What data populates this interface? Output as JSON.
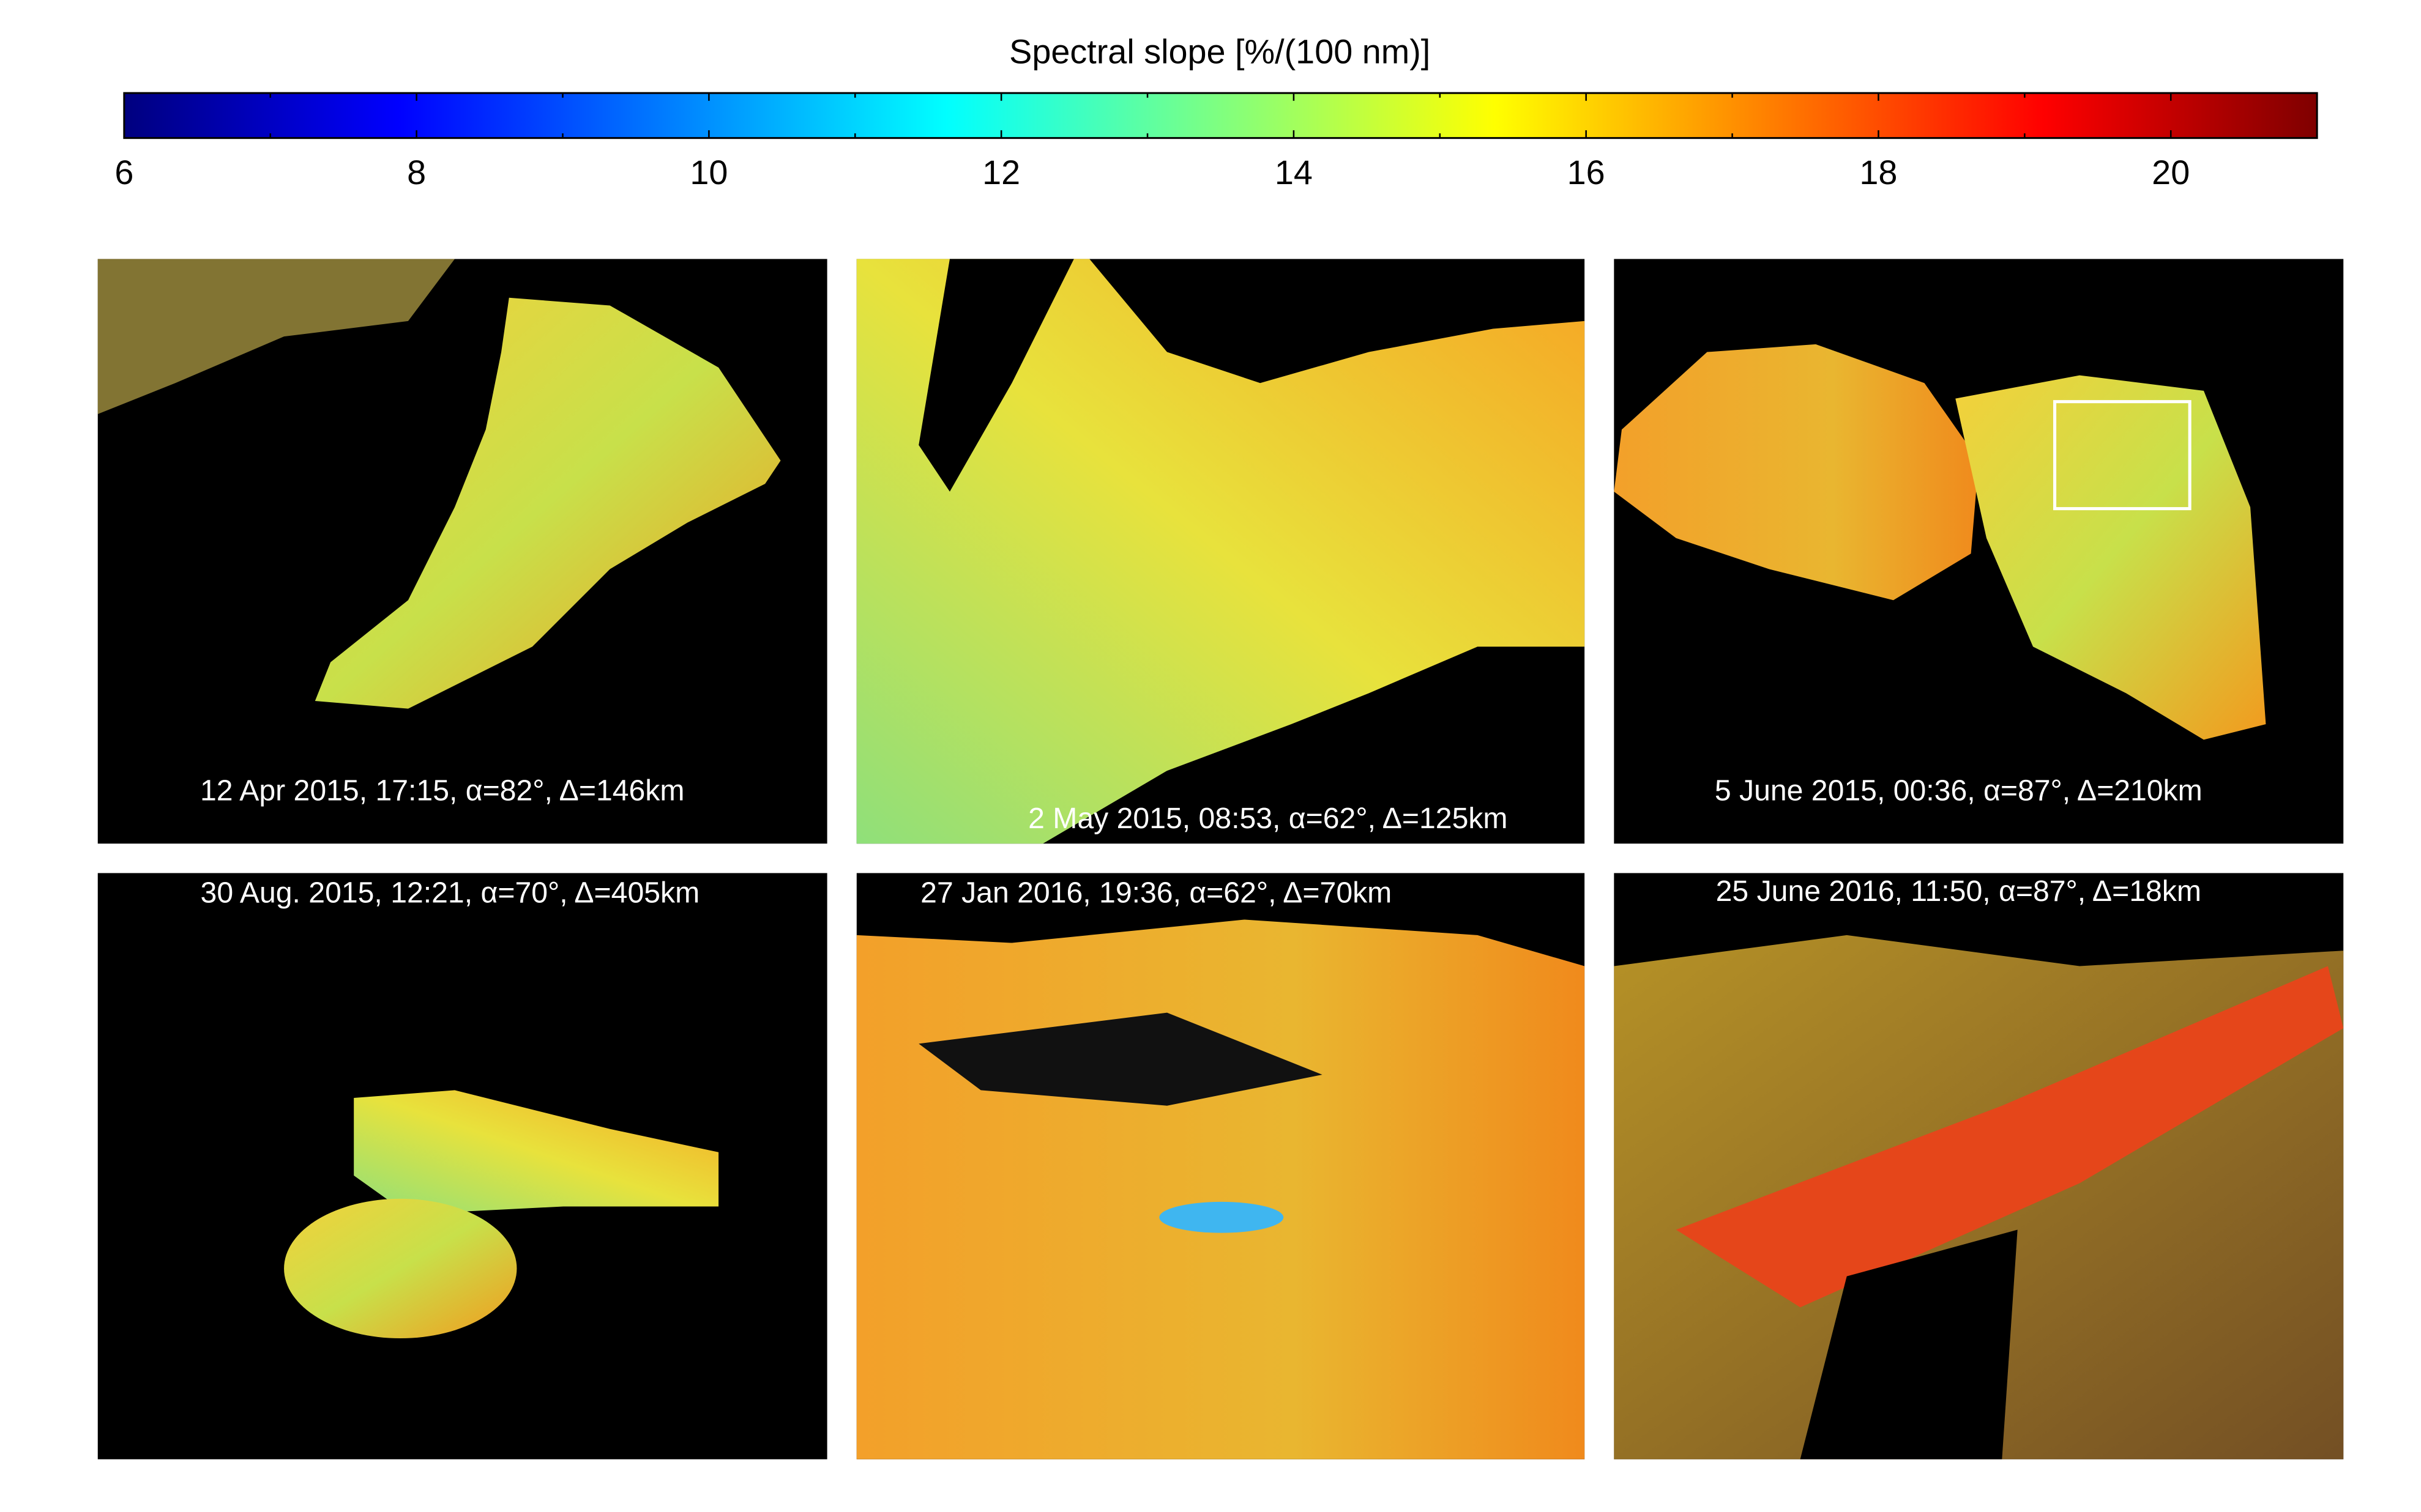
{
  "colorbar": {
    "label": "Spectral slope [%/(100 nm)]",
    "colormap": "jet",
    "lim": [
      6,
      21
    ],
    "ticks": [
      6,
      8,
      10,
      12,
      14,
      16,
      18,
      20
    ],
    "minor_ticks": [
      7,
      9,
      11,
      13,
      15,
      17,
      19
    ]
  },
  "panels": [
    {
      "caption": "12 Apr 2015, 17:15, α=82°, Δ=146km"
    },
    {
      "caption": "2 May 2015, 08:53, α=62°, Δ=125km"
    },
    {
      "caption": "5 June 2015, 00:36, α=87°, Δ=210km"
    },
    {
      "caption": "30 Aug. 2015, 12:21, α=70°, Δ=405km"
    },
    {
      "caption": "27 Jan 2016, 19:36, α=62°, Δ=70km"
    },
    {
      "caption": "25 June 2016, 11:50, α=87°, Δ=18km"
    }
  ]
}
